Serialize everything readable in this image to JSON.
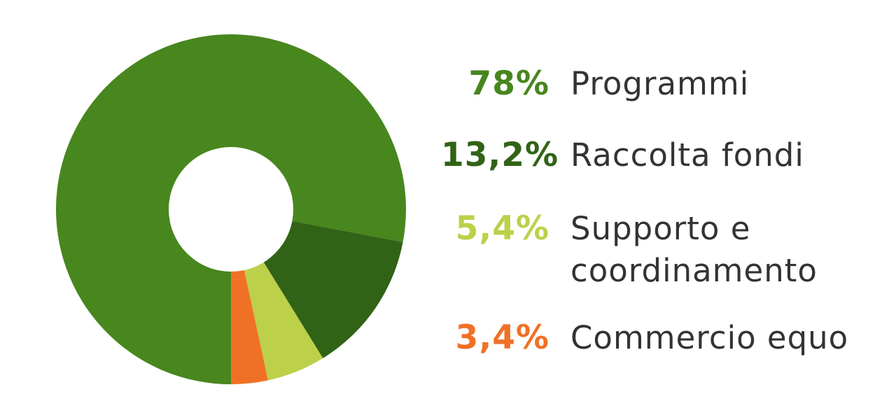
{
  "chart_data": {
    "type": "pie",
    "subtype": "donut",
    "start_angle_deg": 90,
    "direction": "clockwise",
    "slices": [
      {
        "label": "Programmi",
        "value": 78,
        "display": "78%",
        "color": "#48861e"
      },
      {
        "label": "Raccolta fondi",
        "value": 13.2,
        "display": "13,2%",
        "color": "#316316"
      },
      {
        "label": "Supporto e coordinamento",
        "value": 5.4,
        "display": "5,4%",
        "color": "#bcd04a"
      },
      {
        "label": "Commercio equo",
        "value": 3.4,
        "display": "3,4%",
        "color": "#f07126"
      }
    ],
    "legend_placement": "right"
  }
}
